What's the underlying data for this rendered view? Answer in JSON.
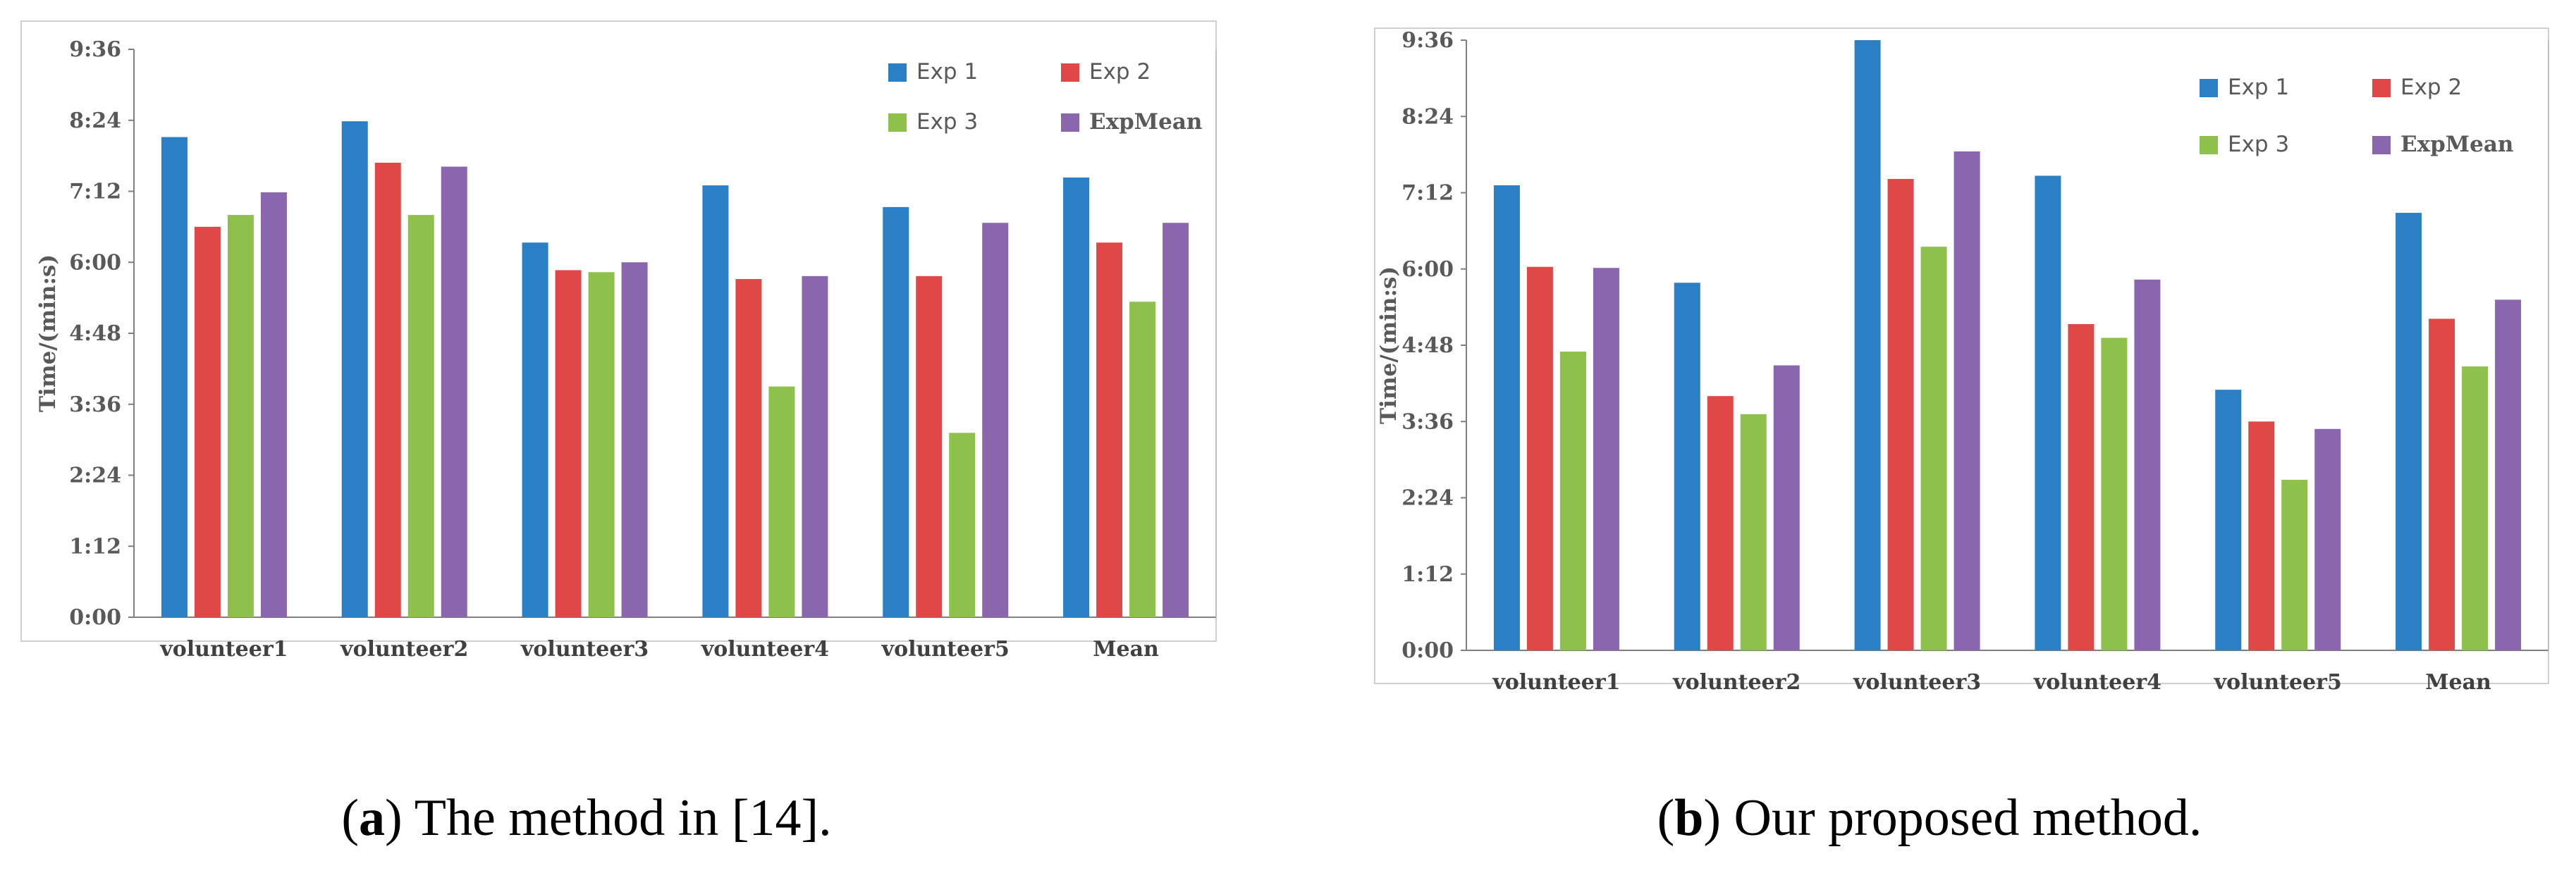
{
  "series_colors": [
    "#2a7fc5",
    "#e04848",
    "#8ec14c",
    "#8a66ae"
  ],
  "chart_data": [
    {
      "type": "bar",
      "caption": {
        "letter": "a",
        "text": ") The method in [14].",
        "open": "("
      },
      "ylabel": "Time/(min:s)",
      "yticks": [
        "0:00",
        "1:12",
        "2:24",
        "3:36",
        "4:48",
        "6:00",
        "7:12",
        "8:24",
        "9:36"
      ],
      "ylim": [
        0,
        576
      ],
      "categories": [
        "volunteer1",
        "volunteer2",
        "volunteer3",
        "volunteer4",
        "volunteer5",
        "Mean"
      ],
      "series": [
        {
          "name": "Exp 1",
          "values": [
            487,
            503,
            380,
            438,
            416,
            446
          ]
        },
        {
          "name": "Exp 2",
          "values": [
            396,
            461,
            352,
            343,
            346,
            380
          ]
        },
        {
          "name": "Exp 3",
          "values": [
            408,
            408,
            350,
            234,
            187,
            320
          ]
        },
        {
          "name": "ExpMean",
          "values": [
            431,
            457,
            360,
            346,
            400,
            400
          ]
        }
      ]
    },
    {
      "type": "bar",
      "caption": {
        "letter": "b",
        "text": ") Our proposed method.",
        "open": "("
      },
      "ylabel": "Time/(min:s)",
      "yticks": [
        "0:00",
        "1:12",
        "2:24",
        "3:36",
        "4:48",
        "6:00",
        "7:12",
        "8:24",
        "9:36"
      ],
      "ylim": [
        0,
        576
      ],
      "categories": [
        "volunteer1",
        "volunteer2",
        "volunteer3",
        "volunteer4",
        "volunteer5",
        "Mean"
      ],
      "series": [
        {
          "name": "Exp 1",
          "values": [
            439,
            347,
            580,
            448,
            246,
            413
          ]
        },
        {
          "name": "Exp 2",
          "values": [
            362,
            240,
            445,
            308,
            216,
            313
          ]
        },
        {
          "name": "Exp 3",
          "values": [
            282,
            223,
            381,
            295,
            161,
            268
          ]
        },
        {
          "name": "ExpMean",
          "values": [
            361,
            269,
            471,
            350,
            209,
            331
          ]
        }
      ]
    }
  ]
}
